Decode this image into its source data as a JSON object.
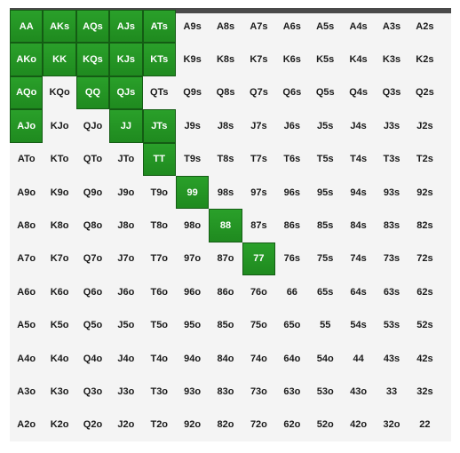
{
  "colors": {
    "selected": "#229022",
    "background": "#f4f4f4",
    "header_bar": "#4a4a4a"
  },
  "range_grid": {
    "rows": [
      [
        {
          "hand": "AA",
          "selected": true
        },
        {
          "hand": "AKs",
          "selected": true
        },
        {
          "hand": "AQs",
          "selected": true
        },
        {
          "hand": "AJs",
          "selected": true
        },
        {
          "hand": "ATs",
          "selected": true
        },
        {
          "hand": "A9s",
          "selected": false
        },
        {
          "hand": "A8s",
          "selected": false
        },
        {
          "hand": "A7s",
          "selected": false
        },
        {
          "hand": "A6s",
          "selected": false
        },
        {
          "hand": "A5s",
          "selected": false
        },
        {
          "hand": "A4s",
          "selected": false
        },
        {
          "hand": "A3s",
          "selected": false
        },
        {
          "hand": "A2s",
          "selected": false
        }
      ],
      [
        {
          "hand": "AKo",
          "selected": true
        },
        {
          "hand": "KK",
          "selected": true
        },
        {
          "hand": "KQs",
          "selected": true
        },
        {
          "hand": "KJs",
          "selected": true
        },
        {
          "hand": "KTs",
          "selected": true
        },
        {
          "hand": "K9s",
          "selected": false
        },
        {
          "hand": "K8s",
          "selected": false
        },
        {
          "hand": "K7s",
          "selected": false
        },
        {
          "hand": "K6s",
          "selected": false
        },
        {
          "hand": "K5s",
          "selected": false
        },
        {
          "hand": "K4s",
          "selected": false
        },
        {
          "hand": "K3s",
          "selected": false
        },
        {
          "hand": "K2s",
          "selected": false
        }
      ],
      [
        {
          "hand": "AQo",
          "selected": true
        },
        {
          "hand": "KQo",
          "selected": false
        },
        {
          "hand": "QQ",
          "selected": true
        },
        {
          "hand": "QJs",
          "selected": true
        },
        {
          "hand": "QTs",
          "selected": false
        },
        {
          "hand": "Q9s",
          "selected": false
        },
        {
          "hand": "Q8s",
          "selected": false
        },
        {
          "hand": "Q7s",
          "selected": false
        },
        {
          "hand": "Q6s",
          "selected": false
        },
        {
          "hand": "Q5s",
          "selected": false
        },
        {
          "hand": "Q4s",
          "selected": false
        },
        {
          "hand": "Q3s",
          "selected": false
        },
        {
          "hand": "Q2s",
          "selected": false
        }
      ],
      [
        {
          "hand": "AJo",
          "selected": true
        },
        {
          "hand": "KJo",
          "selected": false
        },
        {
          "hand": "QJo",
          "selected": false
        },
        {
          "hand": "JJ",
          "selected": true
        },
        {
          "hand": "JTs",
          "selected": true
        },
        {
          "hand": "J9s",
          "selected": false
        },
        {
          "hand": "J8s",
          "selected": false
        },
        {
          "hand": "J7s",
          "selected": false
        },
        {
          "hand": "J6s",
          "selected": false
        },
        {
          "hand": "J5s",
          "selected": false
        },
        {
          "hand": "J4s",
          "selected": false
        },
        {
          "hand": "J3s",
          "selected": false
        },
        {
          "hand": "J2s",
          "selected": false
        }
      ],
      [
        {
          "hand": "ATo",
          "selected": false
        },
        {
          "hand": "KTo",
          "selected": false
        },
        {
          "hand": "QTo",
          "selected": false
        },
        {
          "hand": "JTo",
          "selected": false
        },
        {
          "hand": "TT",
          "selected": true
        },
        {
          "hand": "T9s",
          "selected": false
        },
        {
          "hand": "T8s",
          "selected": false
        },
        {
          "hand": "T7s",
          "selected": false
        },
        {
          "hand": "T6s",
          "selected": false
        },
        {
          "hand": "T5s",
          "selected": false
        },
        {
          "hand": "T4s",
          "selected": false
        },
        {
          "hand": "T3s",
          "selected": false
        },
        {
          "hand": "T2s",
          "selected": false
        }
      ],
      [
        {
          "hand": "A9o",
          "selected": false
        },
        {
          "hand": "K9o",
          "selected": false
        },
        {
          "hand": "Q9o",
          "selected": false
        },
        {
          "hand": "J9o",
          "selected": false
        },
        {
          "hand": "T9o",
          "selected": false
        },
        {
          "hand": "99",
          "selected": true
        },
        {
          "hand": "98s",
          "selected": false
        },
        {
          "hand": "97s",
          "selected": false
        },
        {
          "hand": "96s",
          "selected": false
        },
        {
          "hand": "95s",
          "selected": false
        },
        {
          "hand": "94s",
          "selected": false
        },
        {
          "hand": "93s",
          "selected": false
        },
        {
          "hand": "92s",
          "selected": false
        }
      ],
      [
        {
          "hand": "A8o",
          "selected": false
        },
        {
          "hand": "K8o",
          "selected": false
        },
        {
          "hand": "Q8o",
          "selected": false
        },
        {
          "hand": "J8o",
          "selected": false
        },
        {
          "hand": "T8o",
          "selected": false
        },
        {
          "hand": "98o",
          "selected": false
        },
        {
          "hand": "88",
          "selected": true
        },
        {
          "hand": "87s",
          "selected": false
        },
        {
          "hand": "86s",
          "selected": false
        },
        {
          "hand": "85s",
          "selected": false
        },
        {
          "hand": "84s",
          "selected": false
        },
        {
          "hand": "83s",
          "selected": false
        },
        {
          "hand": "82s",
          "selected": false
        }
      ],
      [
        {
          "hand": "A7o",
          "selected": false
        },
        {
          "hand": "K7o",
          "selected": false
        },
        {
          "hand": "Q7o",
          "selected": false
        },
        {
          "hand": "J7o",
          "selected": false
        },
        {
          "hand": "T7o",
          "selected": false
        },
        {
          "hand": "97o",
          "selected": false
        },
        {
          "hand": "87o",
          "selected": false
        },
        {
          "hand": "77",
          "selected": true
        },
        {
          "hand": "76s",
          "selected": false
        },
        {
          "hand": "75s",
          "selected": false
        },
        {
          "hand": "74s",
          "selected": false
        },
        {
          "hand": "73s",
          "selected": false
        },
        {
          "hand": "72s",
          "selected": false
        }
      ],
      [
        {
          "hand": "A6o",
          "selected": false
        },
        {
          "hand": "K6o",
          "selected": false
        },
        {
          "hand": "Q6o",
          "selected": false
        },
        {
          "hand": "J6o",
          "selected": false
        },
        {
          "hand": "T6o",
          "selected": false
        },
        {
          "hand": "96o",
          "selected": false
        },
        {
          "hand": "86o",
          "selected": false
        },
        {
          "hand": "76o",
          "selected": false
        },
        {
          "hand": "66",
          "selected": false
        },
        {
          "hand": "65s",
          "selected": false
        },
        {
          "hand": "64s",
          "selected": false
        },
        {
          "hand": "63s",
          "selected": false
        },
        {
          "hand": "62s",
          "selected": false
        }
      ],
      [
        {
          "hand": "A5o",
          "selected": false
        },
        {
          "hand": "K5o",
          "selected": false
        },
        {
          "hand": "Q5o",
          "selected": false
        },
        {
          "hand": "J5o",
          "selected": false
        },
        {
          "hand": "T5o",
          "selected": false
        },
        {
          "hand": "95o",
          "selected": false
        },
        {
          "hand": "85o",
          "selected": false
        },
        {
          "hand": "75o",
          "selected": false
        },
        {
          "hand": "65o",
          "selected": false
        },
        {
          "hand": "55",
          "selected": false
        },
        {
          "hand": "54s",
          "selected": false
        },
        {
          "hand": "53s",
          "selected": false
        },
        {
          "hand": "52s",
          "selected": false
        }
      ],
      [
        {
          "hand": "A4o",
          "selected": false
        },
        {
          "hand": "K4o",
          "selected": false
        },
        {
          "hand": "Q4o",
          "selected": false
        },
        {
          "hand": "J4o",
          "selected": false
        },
        {
          "hand": "T4o",
          "selected": false
        },
        {
          "hand": "94o",
          "selected": false
        },
        {
          "hand": "84o",
          "selected": false
        },
        {
          "hand": "74o",
          "selected": false
        },
        {
          "hand": "64o",
          "selected": false
        },
        {
          "hand": "54o",
          "selected": false
        },
        {
          "hand": "44",
          "selected": false
        },
        {
          "hand": "43s",
          "selected": false
        },
        {
          "hand": "42s",
          "selected": false
        }
      ],
      [
        {
          "hand": "A3o",
          "selected": false
        },
        {
          "hand": "K3o",
          "selected": false
        },
        {
          "hand": "Q3o",
          "selected": false
        },
        {
          "hand": "J3o",
          "selected": false
        },
        {
          "hand": "T3o",
          "selected": false
        },
        {
          "hand": "93o",
          "selected": false
        },
        {
          "hand": "83o",
          "selected": false
        },
        {
          "hand": "73o",
          "selected": false
        },
        {
          "hand": "63o",
          "selected": false
        },
        {
          "hand": "53o",
          "selected": false
        },
        {
          "hand": "43o",
          "selected": false
        },
        {
          "hand": "33",
          "selected": false
        },
        {
          "hand": "32s",
          "selected": false
        }
      ],
      [
        {
          "hand": "A2o",
          "selected": false
        },
        {
          "hand": "K2o",
          "selected": false
        },
        {
          "hand": "Q2o",
          "selected": false
        },
        {
          "hand": "J2o",
          "selected": false
        },
        {
          "hand": "T2o",
          "selected": false
        },
        {
          "hand": "92o",
          "selected": false
        },
        {
          "hand": "82o",
          "selected": false
        },
        {
          "hand": "72o",
          "selected": false
        },
        {
          "hand": "62o",
          "selected": false
        },
        {
          "hand": "52o",
          "selected": false
        },
        {
          "hand": "42o",
          "selected": false
        },
        {
          "hand": "32o",
          "selected": false
        },
        {
          "hand": "22",
          "selected": false
        }
      ]
    ]
  }
}
